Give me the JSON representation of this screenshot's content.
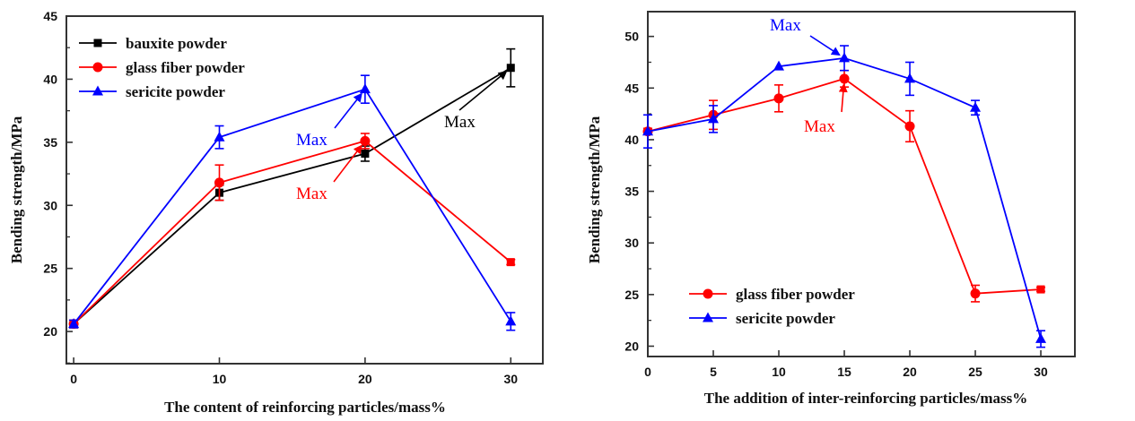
{
  "chart_data": [
    {
      "type": "line",
      "xlabel": "The content of reinforcing particles/mass%",
      "ylabel": "Bending strength/MPa",
      "xlim": [
        -0.5,
        32.2
      ],
      "ylim": [
        17.45,
        45
      ],
      "xticks": [
        0,
        10,
        20,
        30
      ],
      "yticks": [
        20,
        25,
        30,
        35,
        40,
        45
      ],
      "grid": false,
      "legend_position": "top-left",
      "x": [
        0,
        10,
        20,
        30
      ],
      "series": [
        {
          "name": "bauxite powder",
          "color": "#000000",
          "marker": "square",
          "values": [
            20.6,
            31.0,
            34.1,
            40.9
          ],
          "errors": [
            0.3,
            0.6,
            0.6,
            1.5
          ]
        },
        {
          "name": "glass fiber powder",
          "color": "#ff0000",
          "marker": "circle",
          "values": [
            20.6,
            31.8,
            35.1,
            25.5
          ],
          "errors": [
            0.3,
            1.4,
            0.6,
            0.2
          ],
          "last_marker": "square"
        },
        {
          "name": "sericite powder",
          "color": "#0000ff",
          "marker": "triangle",
          "values": [
            20.6,
            35.4,
            39.2,
            20.8
          ],
          "errors": [
            0.3,
            0.9,
            1.1,
            0.7
          ]
        }
      ],
      "annotations": [
        {
          "text": "Max",
          "color": "#0000ff",
          "target_series": "sericite powder",
          "x": 20
        },
        {
          "text": "Max",
          "color": "#ff0000",
          "target_series": "glass fiber powder",
          "x": 20
        },
        {
          "text": "Max",
          "color": "#000000",
          "target_series": "bauxite powder",
          "x": 30
        }
      ]
    },
    {
      "type": "line",
      "xlabel": "The addition of inter-reinforcing particles/mass%",
      "ylabel": "Bending strength/MPa",
      "xlim": [
        0,
        32.6
      ],
      "ylim": [
        19,
        52.4
      ],
      "xticks": [
        0,
        5,
        10,
        15,
        20,
        25,
        30
      ],
      "yticks": [
        20,
        25,
        30,
        35,
        40,
        45,
        50
      ],
      "grid": false,
      "legend_position": "bottom-left",
      "x": [
        0,
        5,
        10,
        15,
        20,
        25,
        30
      ],
      "series": [
        {
          "name": "glass fiber powder",
          "color": "#ff0000",
          "marker": "circle",
          "values": [
            40.8,
            42.4,
            44.0,
            45.9,
            41.3,
            25.1,
            25.5
          ],
          "errors": [
            0.3,
            1.4,
            1.3,
            0.8,
            1.5,
            0.8,
            0.2
          ],
          "last_marker": "square"
        },
        {
          "name": "sericite powder",
          "color": "#0000ff",
          "marker": "triangle",
          "values": [
            40.8,
            42.0,
            47.1,
            47.9,
            45.9,
            43.1,
            20.7
          ],
          "errors": [
            1.6,
            1.3,
            0.0,
            1.2,
            1.6,
            0.7,
            0.8
          ]
        }
      ],
      "annotations": [
        {
          "text": "Max",
          "color": "#0000ff",
          "target_series": "sericite powder",
          "x": 15
        },
        {
          "text": "Max",
          "color": "#ff0000",
          "target_series": "glass fiber powder",
          "x": 15
        }
      ]
    }
  ]
}
